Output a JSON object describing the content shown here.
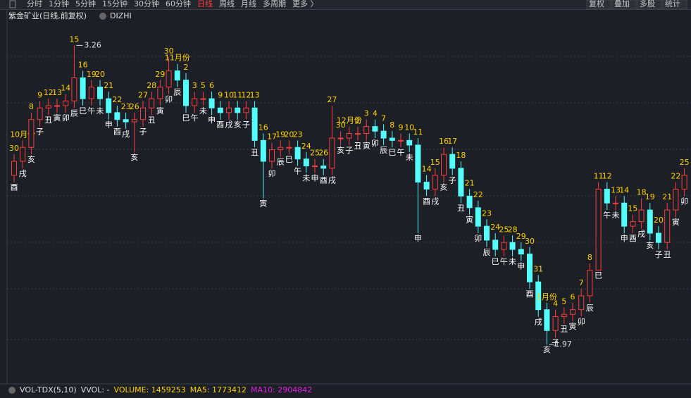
{
  "toolbar": {
    "tabs": [
      "分时",
      "1分钟",
      "5分钟",
      "15分钟",
      "30分钟",
      "60分钟",
      "日线",
      "周线",
      "月线",
      "多周期",
      "更多 〉"
    ],
    "active": 6,
    "right_buttons": [
      "复权",
      "叠加",
      "多股",
      "统计"
    ]
  },
  "chart_data": {
    "type": "candlestick",
    "title": "紫金矿业(日线,前复权)",
    "indicator": "DIZHI",
    "ylim": [
      1.8,
      3.41
    ],
    "up_color": "#ff3c3c",
    "down_color": "#54fcfc",
    "day_color": "#ffd200",
    "branch_color": "#ffffff",
    "high_label": 3.26,
    "high_index": 7,
    "low_label": 1.97,
    "low_index": 62,
    "ohlc": [
      [
        2.7,
        2.79,
        2.67,
        2.76
      ],
      [
        2.76,
        2.85,
        2.73,
        2.82
      ],
      [
        2.82,
        2.97,
        2.79,
        2.94
      ],
      [
        2.94,
        3.02,
        2.91,
        2.99
      ],
      [
        2.99,
        3.03,
        2.96,
        3.0
      ],
      [
        3.0,
        3.03,
        2.97,
        3.0
      ],
      [
        3.0,
        3.05,
        2.97,
        3.02
      ],
      [
        3.02,
        3.26,
        2.99,
        3.12
      ],
      [
        3.12,
        3.15,
        3.0,
        3.03
      ],
      [
        3.03,
        3.11,
        3.0,
        3.08
      ],
      [
        3.08,
        3.11,
        3.0,
        3.03
      ],
      [
        3.03,
        3.06,
        2.94,
        2.97
      ],
      [
        2.97,
        3.0,
        2.91,
        2.94
      ],
      [
        2.94,
        2.97,
        2.9,
        2.93
      ],
      [
        2.93,
        2.97,
        2.8,
        2.94
      ],
      [
        2.94,
        3.02,
        2.91,
        2.99
      ],
      [
        2.99,
        3.06,
        2.96,
        3.03
      ],
      [
        3.03,
        3.11,
        3.0,
        3.08
      ],
      [
        3.08,
        3.21,
        3.05,
        3.15
      ],
      [
        3.15,
        3.18,
        3.08,
        3.11
      ],
      [
        3.11,
        3.14,
        2.97,
        3.0
      ],
      [
        3.0,
        3.06,
        2.97,
        3.03
      ],
      [
        3.03,
        3.06,
        3.0,
        3.03
      ],
      [
        3.03,
        3.06,
        2.96,
        2.99
      ],
      [
        2.99,
        3.02,
        2.94,
        2.97
      ],
      [
        2.97,
        3.02,
        2.94,
        2.99
      ],
      [
        2.99,
        3.02,
        2.94,
        2.97
      ],
      [
        2.97,
        3.02,
        2.94,
        2.99
      ],
      [
        2.99,
        3.02,
        2.82,
        2.85
      ],
      [
        2.85,
        2.88,
        2.6,
        2.76
      ],
      [
        2.76,
        2.84,
        2.73,
        2.81
      ],
      [
        2.81,
        2.85,
        2.78,
        2.82
      ],
      [
        2.82,
        2.85,
        2.79,
        2.82
      ],
      [
        2.82,
        2.85,
        2.74,
        2.77
      ],
      [
        2.77,
        2.8,
        2.71,
        2.74
      ],
      [
        2.74,
        2.77,
        2.71,
        2.74
      ],
      [
        2.74,
        2.77,
        2.7,
        2.73
      ],
      [
        2.73,
        3.0,
        2.7,
        2.86
      ],
      [
        2.86,
        2.89,
        2.83,
        2.86
      ],
      [
        2.86,
        2.91,
        2.83,
        2.88
      ],
      [
        2.88,
        2.91,
        2.85,
        2.88
      ],
      [
        2.88,
        2.94,
        2.85,
        2.91
      ],
      [
        2.91,
        2.94,
        2.86,
        2.89
      ],
      [
        2.89,
        2.92,
        2.83,
        2.86
      ],
      [
        2.86,
        2.89,
        2.82,
        2.85
      ],
      [
        2.85,
        2.88,
        2.82,
        2.85
      ],
      [
        2.85,
        2.88,
        2.8,
        2.83
      ],
      [
        2.83,
        2.86,
        2.45,
        2.67
      ],
      [
        2.67,
        2.7,
        2.61,
        2.64
      ],
      [
        2.64,
        2.73,
        2.61,
        2.7
      ],
      [
        2.7,
        2.82,
        2.67,
        2.79
      ],
      [
        2.79,
        2.82,
        2.7,
        2.73
      ],
      [
        2.73,
        2.76,
        2.58,
        2.61
      ],
      [
        2.61,
        2.64,
        2.53,
        2.56
      ],
      [
        2.56,
        2.59,
        2.45,
        2.48
      ],
      [
        2.48,
        2.51,
        2.39,
        2.42
      ],
      [
        2.42,
        2.45,
        2.35,
        2.38
      ],
      [
        2.38,
        2.44,
        2.35,
        2.41
      ],
      [
        2.41,
        2.44,
        2.35,
        2.38
      ],
      [
        2.38,
        2.41,
        2.33,
        2.36
      ],
      [
        2.36,
        2.39,
        2.21,
        2.24
      ],
      [
        2.24,
        2.27,
        2.09,
        2.12
      ],
      [
        2.12,
        2.15,
        1.97,
        2.03
      ],
      [
        2.03,
        2.12,
        2.0,
        2.09
      ],
      [
        2.09,
        2.13,
        2.06,
        2.1
      ],
      [
        2.1,
        2.15,
        2.07,
        2.12
      ],
      [
        2.12,
        2.21,
        2.09,
        2.18
      ],
      [
        2.18,
        2.32,
        2.15,
        2.29
      ],
      [
        2.29,
        2.67,
        2.29,
        2.64
      ],
      [
        2.64,
        2.67,
        2.55,
        2.58
      ],
      [
        2.58,
        2.61,
        2.55,
        2.58
      ],
      [
        2.58,
        2.61,
        2.45,
        2.48
      ],
      [
        2.48,
        2.53,
        2.45,
        2.5
      ],
      [
        2.5,
        2.6,
        2.47,
        2.55
      ],
      [
        2.55,
        2.58,
        2.42,
        2.45
      ],
      [
        2.45,
        2.48,
        2.38,
        2.41
      ],
      [
        2.41,
        2.58,
        2.38,
        2.55
      ],
      [
        2.55,
        2.67,
        2.52,
        2.64
      ],
      [
        2.64,
        2.73,
        2.61,
        2.7
      ]
    ],
    "days": [
      "30",
      "10月份",
      "8",
      "9",
      "12",
      "13",
      "14",
      "15",
      "16",
      "19",
      "20",
      "21",
      "22",
      "23",
      "26",
      "27",
      "28",
      "29",
      "30",
      "11月份",
      "2",
      "3",
      "5",
      "6",
      "9",
      "10",
      "11",
      "12",
      "13",
      "16",
      "17",
      "19",
      "20",
      "23",
      "24",
      "25",
      "26",
      "27",
      "30",
      "12月份",
      "2",
      "3",
      "4",
      "7",
      "8",
      "9",
      "10",
      "11",
      "14",
      "15",
      "16",
      "17",
      "18",
      "21",
      "22",
      "23",
      "24",
      "25",
      "28",
      "29",
      "30",
      "31",
      "1月份",
      "4",
      "5",
      "6",
      "7",
      "8",
      "11",
      "12",
      "13",
      "14",
      "15",
      "18",
      "19",
      "20",
      "21",
      "22",
      "25"
    ],
    "branches": [
      "酉",
      "戌",
      "亥",
      "子",
      "丑",
      "寅",
      "卯",
      "辰",
      "巳",
      "午",
      "未",
      "申",
      "酉",
      "戌",
      "亥",
      "子",
      "丑",
      "寅",
      "卯",
      "辰",
      "巳",
      "午",
      "未",
      "申",
      "酉",
      "戌",
      "亥",
      "子",
      "丑",
      "寅",
      "卯",
      "辰",
      "巳",
      "午",
      "未",
      "申",
      "酉",
      "戌",
      "亥",
      "子",
      "丑",
      "寅",
      "卯",
      "辰",
      "巳",
      "午",
      "未",
      "申",
      "酉",
      "戌",
      "亥",
      "子",
      "丑",
      "寅",
      "卯",
      "辰",
      "巳",
      "午",
      "未",
      "申",
      "酉",
      "戌",
      "亥",
      "子",
      "丑",
      "寅",
      "卯",
      "辰",
      "巳",
      "午",
      "未",
      "申",
      "酉",
      "戌",
      "亥",
      "子",
      "丑",
      "寅",
      "卯"
    ]
  },
  "volume_bar": {
    "name": "VOL-TDX(5,10)",
    "vvol": "VVOL: -",
    "volume": "VOLUME: 1459253",
    "ma5": "MA5: 1773412",
    "ma10": "MA10: 2904842"
  }
}
